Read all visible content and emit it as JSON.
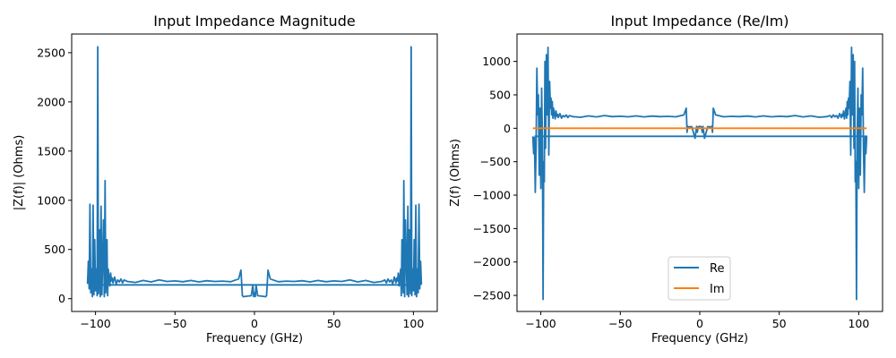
{
  "chart_data": [
    {
      "type": "line",
      "title": "Input Impedance Magnitude",
      "xlabel": "Frequency (GHz)",
      "ylabel": "|Z(f)| (Ohms)",
      "xlim": [
        -115,
        115
      ],
      "ylim": [
        -130,
        2690
      ],
      "xticks": [
        -100,
        -50,
        0,
        50,
        100
      ],
      "yticks": [
        0,
        500,
        1000,
        1500,
        2000,
        2500
      ],
      "grid": false,
      "series": [
        {
          "name": "",
          "color": "#1f77b4",
          "x": [
            -105,
            -104.5,
            -104,
            -103.5,
            -103,
            -102.5,
            -102,
            -101.5,
            -101,
            -100.5,
            -100,
            -99.5,
            -99,
            -98.6,
            -98.2,
            -97.8,
            -97.4,
            -97,
            -96.5,
            -96,
            -95.5,
            -95,
            -94.5,
            -94,
            -93.6,
            -93.2,
            -92.8,
            -92.4,
            -92,
            -91.5,
            -91,
            -90.5,
            -90,
            -89.5,
            -89,
            -88,
            -87,
            -86,
            -85,
            -84,
            -83,
            -82,
            -80,
            -75,
            -70,
            -65,
            -60,
            -55,
            -50,
            -45,
            -40,
            -35,
            -30,
            -25,
            -20,
            -15,
            -10,
            -8.5,
            -7.6,
            -7,
            -5,
            -2,
            -1,
            -0.5,
            0,
            0.5,
            1,
            2,
            5,
            7,
            7.6,
            8.5,
            10,
            15,
            20,
            25,
            30,
            35,
            40,
            45,
            50,
            55,
            60,
            65,
            70,
            75,
            80,
            82,
            83,
            84,
            85,
            86,
            87,
            88,
            89,
            89.5,
            90,
            90.5,
            91,
            91.5,
            92,
            92.4,
            92.8,
            93.2,
            93.6,
            94,
            94.5,
            95,
            95.5,
            96,
            96.5,
            97,
            97.4,
            97.8,
            98.2,
            98.6,
            99,
            99.5,
            100,
            100.5,
            101,
            101.5,
            102,
            102.5,
            103,
            103.5,
            104,
            104.5,
            105,
            104,
            90,
            0,
            -90,
            -104
          ],
          "y": [
            150,
            380,
            100,
            960,
            60,
            300,
            20,
            950,
            40,
            600,
            80,
            300,
            30,
            2560,
            50,
            200,
            700,
            20,
            940,
            40,
            400,
            800,
            20,
            1200,
            60,
            250,
            600,
            30,
            300,
            220,
            130,
            260,
            180,
            210,
            160,
            220,
            150,
            190,
            170,
            200,
            160,
            190,
            175,
            165,
            185,
            170,
            190,
            175,
            180,
            172,
            185,
            170,
            182,
            175,
            178,
            172,
            200,
            290,
            30,
            20,
            25,
            30,
            140,
            20,
            60,
            20,
            140,
            30,
            25,
            20,
            30,
            290,
            200,
            172,
            178,
            175,
            182,
            170,
            185,
            172,
            180,
            175,
            190,
            170,
            185,
            165,
            175,
            190,
            160,
            200,
            170,
            190,
            150,
            220,
            160,
            210,
            180,
            260,
            130,
            220,
            300,
            30,
            600,
            250,
            60,
            1200,
            20,
            800,
            400,
            40,
            940,
            20,
            700,
            200,
            50,
            2560,
            30,
            300,
            80,
            600,
            40,
            950,
            20,
            300,
            60,
            960,
            100,
            380,
            150,
            140,
            140,
            140,
            140,
            140
          ]
        }
      ]
    },
    {
      "type": "line",
      "title": "Input Impedance (Re/Im)",
      "xlabel": "Frequency (GHz)",
      "ylabel": "Z(f) (Ohms)",
      "xlim": [
        -115,
        115
      ],
      "ylim": [
        -2740,
        1410
      ],
      "xticks": [
        -100,
        -50,
        0,
        50,
        100
      ],
      "yticks": [
        -2500,
        -2000,
        -1500,
        -1000,
        -500,
        0,
        500,
        1000
      ],
      "grid": false,
      "legend": "lower center",
      "series": [
        {
          "name": "Re",
          "color": "#1f77b4",
          "x": [
            -105,
            -104.5,
            -104,
            -103.5,
            -103,
            -102.5,
            -102,
            -101.5,
            -101,
            -100.5,
            -100,
            -99.5,
            -99,
            -98.6,
            -98.2,
            -97.8,
            -97.4,
            -97,
            -96.5,
            -96,
            -95.5,
            -95,
            -94.5,
            -94,
            -93.6,
            -93.2,
            -92.8,
            -92.4,
            -92,
            -91.5,
            -91,
            -90.5,
            -90,
            -89.5,
            -89,
            -88,
            -87,
            -86,
            -85,
            -84,
            -83,
            -82,
            -80,
            -75,
            -70,
            -65,
            -60,
            -55,
            -50,
            -45,
            -40,
            -35,
            -30,
            -25,
            -20,
            -15,
            -10,
            -8.5,
            -8,
            -7.6,
            -7,
            -5,
            -3,
            -2,
            -1.5,
            -1,
            0,
            1,
            1.5,
            2,
            3,
            5,
            7,
            7.6,
            8,
            8.5,
            10,
            15,
            20,
            25,
            30,
            35,
            40,
            45,
            50,
            55,
            60,
            65,
            70,
            75,
            80,
            82,
            83,
            84,
            85,
            86,
            87,
            88,
            89,
            89.5,
            90,
            90.5,
            91,
            91.5,
            92,
            92.4,
            92.8,
            93.2,
            93.6,
            94,
            94.5,
            95,
            95.5,
            96,
            96.5,
            97,
            97.4,
            97.8,
            98.2,
            98.6,
            99,
            99.5,
            100,
            100.5,
            101,
            101.5,
            102,
            102.5,
            103,
            103.5,
            104,
            104.5,
            105,
            104,
            90,
            0,
            -90,
            -104
          ],
          "y": [
            -120,
            -380,
            -140,
            -960,
            -300,
            900,
            200,
            500,
            -700,
            300,
            -900,
            600,
            -200,
            -2560,
            -500,
            -800,
            1000,
            -300,
            1100,
            200,
            1210,
            -400,
            700,
            300,
            450,
            200,
            400,
            150,
            300,
            220,
            140,
            260,
            180,
            210,
            160,
            220,
            150,
            190,
            170,
            200,
            160,
            190,
            175,
            165,
            185,
            170,
            190,
            175,
            180,
            172,
            185,
            170,
            182,
            175,
            178,
            172,
            200,
            300,
            -60,
            30,
            20,
            25,
            -150,
            30,
            -60,
            20,
            30,
            20,
            -60,
            30,
            -150,
            25,
            20,
            30,
            -60,
            300,
            200,
            172,
            178,
            175,
            182,
            170,
            185,
            172,
            180,
            175,
            190,
            170,
            185,
            165,
            175,
            190,
            160,
            200,
            170,
            190,
            150,
            220,
            160,
            210,
            180,
            260,
            140,
            220,
            300,
            150,
            400,
            200,
            450,
            300,
            700,
            -400,
            1210,
            200,
            1100,
            -300,
            1000,
            -800,
            -500,
            -2560,
            -200,
            600,
            -900,
            300,
            -700,
            500,
            200,
            900,
            -300,
            -960,
            -140,
            -380,
            -120,
            -120,
            -120,
            -120,
            -120,
            -120
          ]
        },
        {
          "name": "Im",
          "color": "#ff7f0e",
          "x": [
            -105,
            105
          ],
          "y": [
            0,
            0
          ]
        }
      ]
    }
  ]
}
